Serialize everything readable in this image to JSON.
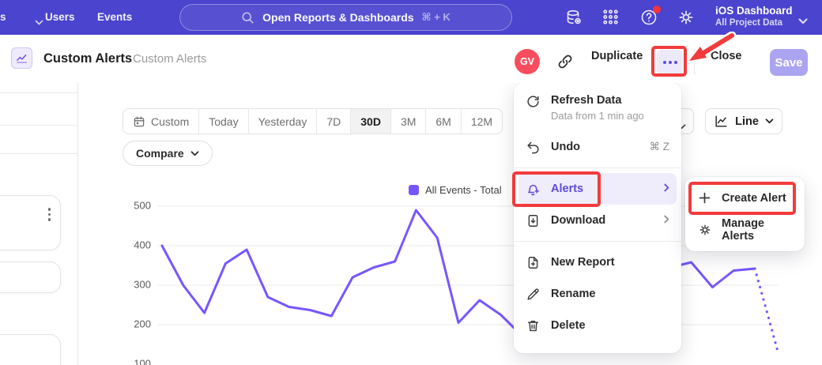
{
  "topnav": {
    "truncated_nav_item": "s",
    "nav_items": [
      "Users",
      "Events"
    ],
    "search": {
      "placeholder": "Open Reports & Dashboards",
      "shortcut": "⌘ + K"
    },
    "project": {
      "name": "iOS Dashboard",
      "scope": "All Project Data"
    }
  },
  "header": {
    "title": "Custom Alerts",
    "breadcrumb": "Custom Alerts",
    "avatar_initials": "GV",
    "duplicate_label": "Duplicate",
    "close_label": "Close",
    "save_label": "Save"
  },
  "toolbar": {
    "date_ranges": [
      "Custom",
      "Today",
      "Yesterday",
      "7D",
      "30D",
      "3M",
      "6M",
      "12M"
    ],
    "selected_range": "30D",
    "compare_label": "Compare",
    "chart_type_label": "Line"
  },
  "menu": {
    "refresh": {
      "label": "Refresh Data",
      "sublabel": "Data from 1 min ago"
    },
    "undo": {
      "label": "Undo",
      "shortcut": "⌘ Z"
    },
    "alerts": {
      "label": "Alerts"
    },
    "download": {
      "label": "Download"
    },
    "new_report": {
      "label": "New Report"
    },
    "rename": {
      "label": "Rename"
    },
    "delete": {
      "label": "Delete"
    }
  },
  "submenu": {
    "create_alert": {
      "label": "Create Alert"
    },
    "manage_alerts": {
      "label": "Manage Alerts"
    }
  },
  "colors": {
    "nav_bg": "#4B44CE",
    "accent_purple": "#7856FF",
    "menu_highlight_bg": "#EFECFB",
    "menu_highlight_text": "#5F4BD9",
    "annotation_red": "#F23B3C",
    "avatar_bg": "#F94D5F",
    "save_button_bg": "#ABA4F0"
  },
  "chart_data": {
    "type": "line",
    "title": "",
    "xlabel": "",
    "ylabel": "",
    "yticks": [
      100,
      200,
      300,
      400,
      500
    ],
    "ylim": [
      100,
      520
    ],
    "grid": true,
    "legend_position": "top-right",
    "series": [
      {
        "name": "All Events - Total",
        "color": "#7856FF",
        "values": [
          400,
          300,
          230,
          355,
          390,
          270,
          245,
          237,
          222,
          320,
          345,
          360,
          490,
          420,
          205,
          262,
          225,
          172,
          192,
          230,
          280,
          310,
          290,
          330,
          345,
          358,
          295,
          337,
          342
        ],
        "projected_values": [
          235,
          125
        ]
      }
    ]
  }
}
